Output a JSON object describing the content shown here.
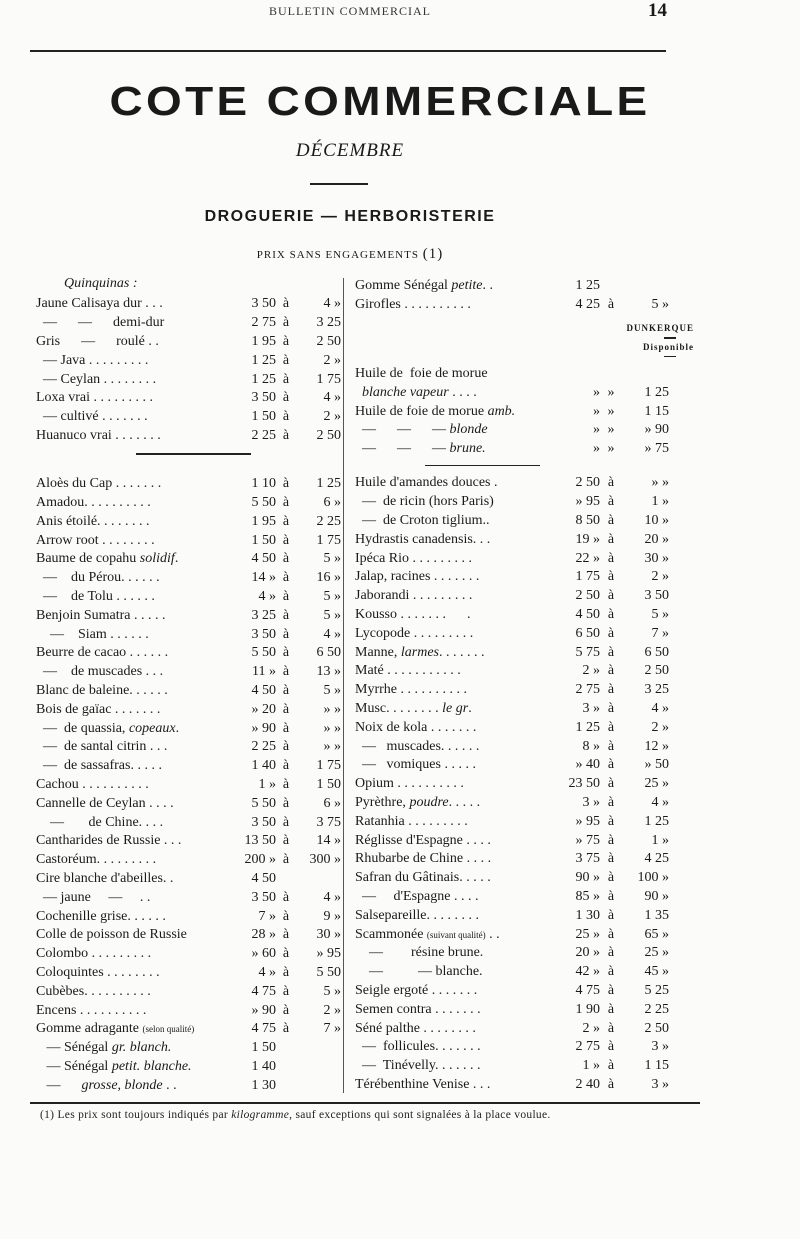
{
  "header": {
    "running_title": "BULLETIN COMMERCIAL",
    "page_number": "14"
  },
  "title": "COTE COMMERCIALE",
  "month": "DÉCEMBRE",
  "section": "DROGUERIE — HERBORISTERIE",
  "subsection": {
    "text": "PRIX SANS ENGAGEMENTS",
    "note_ref": "(1)"
  },
  "left": {
    "intro": "Quinquinas :",
    "group1": [
      {
        "name": "Jaune Calisaya dur . . .",
        "from": "3 50",
        "sep": "à",
        "to": "4 »"
      },
      {
        "name": "  —      —      demi-dur",
        "from": "2 75",
        "sep": "à",
        "to": "3 25"
      },
      {
        "name": "Gris      —      roulé . .",
        "from": "1 95",
        "sep": "à",
        "to": "2 50"
      },
      {
        "name": "  — Java . . . . . . . . .",
        "from": "1 25",
        "sep": "à",
        "to": "2 »"
      },
      {
        "name": "  — Ceylan . . . . . . . .",
        "from": "1 25",
        "sep": "à",
        "to": "1 75"
      },
      {
        "name": "Loxa vrai . . . . . . . . .",
        "from": "3 50",
        "sep": "à",
        "to": "4 »"
      },
      {
        "name": "  — cultivé . . . . . . .",
        "from": "1 50",
        "sep": "à",
        "to": "2 »"
      },
      {
        "name": "Huanuco vrai . . . . . . .",
        "from": "2 25",
        "sep": "à",
        "to": "2 50"
      }
    ],
    "group2": [
      {
        "name": "Aloès du Cap . . . . . . .",
        "from": "1 10",
        "sep": "à",
        "to": "1 25"
      },
      {
        "name": "Amadou. . . . . . . . . .",
        "from": "5 50",
        "sep": "à",
        "to": "6 »"
      },
      {
        "name": "Anis étoilé. . . . . . . .",
        "from": "1 95",
        "sep": "à",
        "to": "2 25"
      },
      {
        "name": "Arrow root . . . . . . . .",
        "from": "1 50",
        "sep": "à",
        "to": "1 75"
      },
      {
        "name": "Baume de copahu ",
        "em": "solidif",
        "tail": ".",
        "from": "4 50",
        "sep": "à",
        "to": "5 »"
      },
      {
        "name": "  —    du Pérou. . . . . .",
        "from": "14 »",
        "sep": "à",
        "to": "16 »"
      },
      {
        "name": "  —    de Tolu . . . . . .",
        "from": "4 »",
        "sep": "à",
        "to": "5 »"
      },
      {
        "name": "Benjoin Sumatra . . . . .",
        "from": "3 25",
        "sep": "à",
        "to": "5 »"
      },
      {
        "name": "    —    Siam . . . . . .",
        "from": "3 50",
        "sep": "à",
        "to": "4 »"
      },
      {
        "name": "Beurre de cacao . . . . . .",
        "from": "5 50",
        "sep": "à",
        "to": "6 50"
      },
      {
        "name": "  —    de muscades . . .",
        "from": "11 »",
        "sep": "à",
        "to": "13 »"
      },
      {
        "name": "Blanc de baleine. . . . . .",
        "from": "4 50",
        "sep": "à",
        "to": "5 »"
      },
      {
        "name": "Bois de gaïac . . . . . . .",
        "from": "» 20",
        "sep": "à",
        "to": "» »"
      },
      {
        "name": "  —  de quassia, ",
        "em": "copeaux",
        "tail": ".",
        "from": "» 90",
        "sep": "à",
        "to": "» »"
      },
      {
        "name": "  —  de santal citrin . . .",
        "from": "2 25",
        "sep": "à",
        "to": "» »"
      },
      {
        "name": "  —  de sassafras. . . . .",
        "from": "1 40",
        "sep": "à",
        "to": "1 75"
      },
      {
        "name": "Cachou . . . . . . . . . .",
        "from": "1 »",
        "sep": "à",
        "to": "1 50"
      },
      {
        "name": "Cannelle de Ceylan . . . .",
        "from": "5 50",
        "sep": "à",
        "to": "6 »"
      },
      {
        "name": "    —       de Chine. . . .",
        "from": "3 50",
        "sep": "à",
        "to": "3 75"
      },
      {
        "name": "Cantharides de Russie . . .",
        "from": "13 50",
        "sep": "à",
        "to": "14 »"
      },
      {
        "name": "Castoréum. . . . . . . . .",
        "from": "200 »",
        "sep": "à",
        "to": "300 »"
      },
      {
        "name": "Cire blanche d'abeilles. .",
        "from": "4 50",
        "sep": "",
        "to": ""
      },
      {
        "name": "  — jaune     —     . .",
        "from": "3 50",
        "sep": "à",
        "to": "4 »"
      },
      {
        "name": "Cochenille grise. . . . . .",
        "from": "7 »",
        "sep": "à",
        "to": "9 »"
      },
      {
        "name": "Colle de poisson de Russie",
        "from": "28 »",
        "sep": "à",
        "to": "30 »"
      },
      {
        "name": "Colombo . . . . . . . . .",
        "from": "» 60",
        "sep": "à",
        "to": "» 95"
      },
      {
        "name": "Coloquintes . . . . . . . .",
        "from": "4 »",
        "sep": "à",
        "to": "5 50"
      },
      {
        "name": "Cubèbes. . . . . . . . . .",
        "from": "4 75",
        "sep": "à",
        "to": "5 »"
      },
      {
        "name": "Encens . . . . . . . . . .",
        "from": "» 90",
        "sep": "à",
        "to": "2 »"
      },
      {
        "name": "Gomme adragante ",
        "small": "(selon qualité)",
        "from": "4 75",
        "sep": "à",
        "to": "7 »"
      },
      {
        "name": "   — Sénégal ",
        "em": "gr. blanch.",
        "tail": "",
        "from": "1 50",
        "sep": "",
        "to": ""
      },
      {
        "name": "   — Sénégal ",
        "em": "petit. blanche.",
        "tail": "",
        "from": "1 40",
        "sep": "",
        "to": ""
      },
      {
        "name": "   —      ",
        "em": "grosse, blonde",
        "tail": " . .",
        "from": "1 30",
        "sep": "",
        "to": ""
      }
    ]
  },
  "right": {
    "group1": [
      {
        "name": "Gomme Sénégal ",
        "em": "petite",
        "tail": ". .",
        "from": "1 25",
        "sep": "",
        "to": ""
      },
      {
        "name": "Girofles . . . . . . . . . .",
        "from": "4 25",
        "sep": "à",
        "to": "5 »"
      }
    ],
    "market_heading": "DUNKERQUE",
    "market_subheading": "Disponible",
    "group_oil": [
      {
        "name": "Huile de  foie de morue",
        "from": "",
        "sep": "",
        "to": ""
      },
      {
        "name": "  ",
        "em": "blanche vapeur",
        "tail": " . . . .",
        "from": "»",
        "sep": "»",
        "to": "1 25"
      },
      {
        "name": "Huile de foie de morue ",
        "em": "amb.",
        "tail": "",
        "from": "»",
        "sep": "»",
        "to": "1 15"
      },
      {
        "name": "  —      —      — ",
        "em": "blonde",
        "tail": "",
        "from": "»",
        "sep": "»",
        "to": "» 90"
      },
      {
        "name": "  —      —      — ",
        "em": "brune.",
        "tail": "",
        "from": "»",
        "sep": "»",
        "to": "» 75"
      }
    ],
    "group2": [
      {
        "name": "Huile d'amandes douces .",
        "from": "2 50",
        "sep": "à",
        "to": "» »"
      },
      {
        "name": "  —  de ricin (hors Paris)",
        "from": "» 95",
        "sep": "à",
        "to": "1 »"
      },
      {
        "name": "  —  de Croton tiglium..",
        "from": "8 50",
        "sep": "à",
        "to": "10 »"
      },
      {
        "name": "Hydrastis canadensis. . .",
        "from": "19 »",
        "sep": "à",
        "to": "20 »"
      },
      {
        "name": "Ipéca Rio . . . . . . . . .",
        "from": "22 »",
        "sep": "à",
        "to": "30 »"
      },
      {
        "name": "Jalap, racines . . . . . . .",
        "from": "1 75",
        "sep": "à",
        "to": "2 »"
      },
      {
        "name": "Jaborandi . . . . . . . . .",
        "from": "2 50",
        "sep": "à",
        "to": "3 50"
      },
      {
        "name": "Kousso . . . . . . .      .",
        "from": "4 50",
        "sep": "à",
        "to": "5 »"
      },
      {
        "name": "Lycopode . . . . . . . . .",
        "from": "6 50",
        "sep": "à",
        "to": "7 »"
      },
      {
        "name": "Manne, ",
        "em": "larmes",
        "tail": ". . . . . . .",
        "from": "5 75",
        "sep": "à",
        "to": "6 50"
      },
      {
        "name": "Maté . . . . . . . . . . .",
        "from": "2 »",
        "sep": "à",
        "to": "2 50"
      },
      {
        "name": "Myrrhe . . . . . . . . . .",
        "from": "2 75",
        "sep": "à",
        "to": "3 25"
      },
      {
        "name": "Musc. . . . . . . . ",
        "em": "le gr",
        "tail": ".",
        "from": "3 »",
        "sep": "à",
        "to": "4 »"
      },
      {
        "name": "Noix de kola . . . . . . .",
        "from": "1 25",
        "sep": "à",
        "to": "2 »"
      },
      {
        "name": "  —   muscades. . . . . .",
        "from": "8 »",
        "sep": "à",
        "to": "12 »"
      },
      {
        "name": "  —   vomiques . . . . .",
        "from": "» 40",
        "sep": "à",
        "to": "» 50"
      },
      {
        "name": "Opium . . . . . . . . . .",
        "from": "23 50",
        "sep": "à",
        "to": "25 »"
      },
      {
        "name": "Pyrèthre, ",
        "em": "poudre",
        "tail": ". . . . .",
        "from": "3 »",
        "sep": "à",
        "to": "4 »"
      },
      {
        "name": "Ratanhia . . . . . . . . .",
        "from": "» 95",
        "sep": "à",
        "to": "1 25"
      },
      {
        "name": "Réglisse d'Espagne . . . .",
        "from": "» 75",
        "sep": "à",
        "to": "1 »"
      },
      {
        "name": "Rhubarbe de Chine . . . .",
        "from": "3 75",
        "sep": "à",
        "to": "4 25"
      },
      {
        "name": "Safran du Gâtinais. . . . .",
        "from": "90 »",
        "sep": "à",
        "to": "100 »"
      },
      {
        "name": "  —     d'Espagne . . . .",
        "from": "85 »",
        "sep": "à",
        "to": "90 »"
      },
      {
        "name": "Salsepareille. . . . . . . .",
        "from": "1 30",
        "sep": "à",
        "to": "1 35"
      },
      {
        "name": "Scammonée ",
        "small": "(suivant qualité)",
        "tail": " . .",
        "from": "25 »",
        "sep": "à",
        "to": "65 »"
      },
      {
        "name": "    —        résine brune.",
        "from": "20 »",
        "sep": "à",
        "to": "25 »"
      },
      {
        "name": "    —          — blanche.",
        "from": "42 »",
        "sep": "à",
        "to": "45 »"
      },
      {
        "name": "Seigle ergoté . . . . . . .",
        "from": "4 75",
        "sep": "à",
        "to": "5 25"
      },
      {
        "name": "Semen contra . . . . . . .",
        "from": "1 90",
        "sep": "à",
        "to": "2 25"
      },
      {
        "name": "Séné palthe . . . . . . . .",
        "from": "2 »",
        "sep": "à",
        "to": "2 50"
      },
      {
        "name": "  —  follicules. . . . . . .",
        "from": "2 75",
        "sep": "à",
        "to": "3 »"
      },
      {
        "name": "  —  Tinévelly. . . . . . .",
        "from": "1 »",
        "sep": "à",
        "to": "1 15"
      },
      {
        "name": "Térébenthine Venise . . .",
        "from": "2 40",
        "sep": "à",
        "to": "3 »"
      }
    ]
  },
  "footnote": {
    "ref": "(1)",
    "before": " Les prix sont toujours indiqués par ",
    "em": "kilogramme",
    "after": ", sauf exceptions qui sont signalées à la place voulue."
  }
}
